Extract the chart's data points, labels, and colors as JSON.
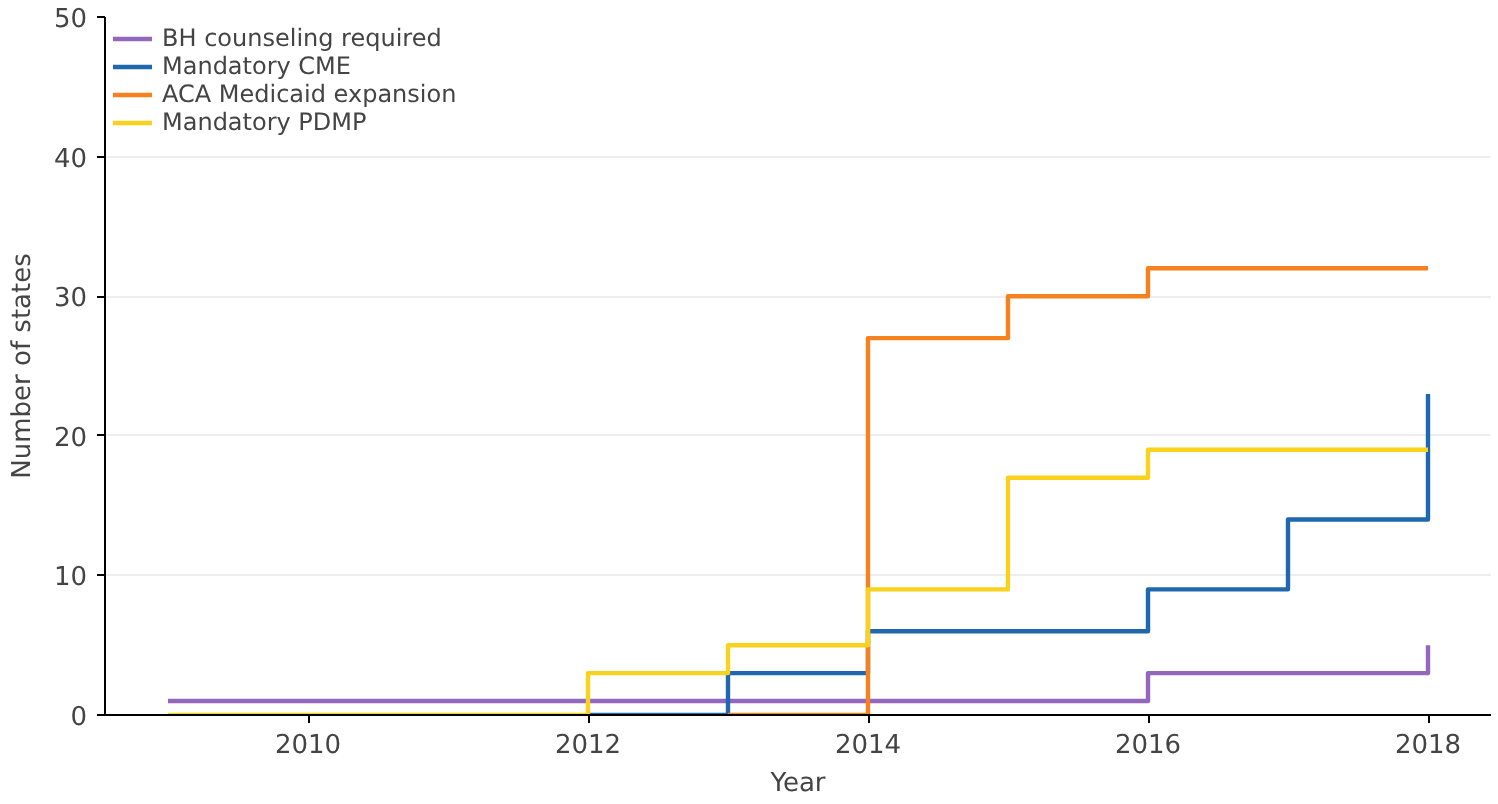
{
  "chart_data": {
    "type": "step",
    "xlabel": "Year",
    "ylabel": "Number of states",
    "x": [
      2009,
      2010,
      2011,
      2012,
      2013,
      2014,
      2015,
      2016,
      2017,
      2018
    ],
    "series": [
      {
        "name": "BH counseling required",
        "color": "#9467bd",
        "values": [
          1,
          1,
          1,
          1,
          1,
          1,
          1,
          3,
          3,
          5
        ]
      },
      {
        "name": "Mandatory CME",
        "color": "#1f68b0",
        "values": [
          null,
          null,
          null,
          0,
          3,
          6,
          6,
          9,
          14,
          23
        ]
      },
      {
        "name": "ACA Medicaid expansion",
        "color": "#f5821f",
        "values": [
          null,
          null,
          null,
          null,
          0,
          27,
          30,
          32,
          32,
          32
        ]
      },
      {
        "name": "Mandatory PDMP",
        "color": "#f8d21c",
        "values": [
          0,
          0,
          0,
          3,
          5,
          9,
          17,
          19,
          19,
          19
        ]
      }
    ],
    "xlim": [
      2008.55,
      2018.45
    ],
    "ylim": [
      0,
      50
    ],
    "xticks": [
      2010,
      2012,
      2014,
      2016,
      2018
    ],
    "yticks": [
      0,
      10,
      20,
      30,
      40,
      50
    ],
    "grid": "y",
    "legend": "top left"
  }
}
